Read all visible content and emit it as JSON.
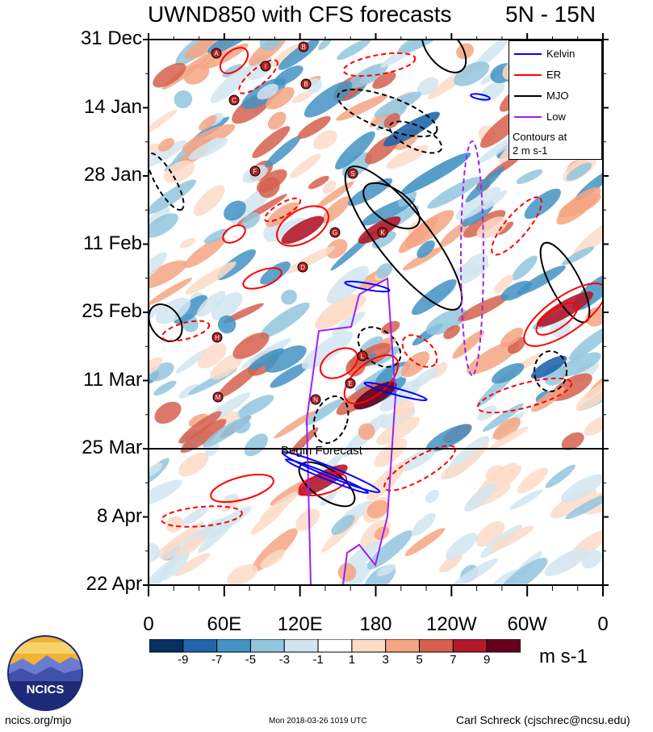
{
  "title": {
    "left": "UWND850 with CFS forecasts",
    "right": "5N - 15N"
  },
  "chart_data": {
    "type": "heatmap",
    "title": "UWND850 with CFS forecasts",
    "latitude_band": "5N - 15N",
    "y_axis": {
      "ticks": [
        "31 Dec",
        "14 Jan",
        "28 Jan",
        "11 Feb",
        "25 Feb",
        "11 Mar",
        "25 Mar",
        "8 Apr",
        "22 Apr"
      ],
      "direction": "time increasing downward"
    },
    "x_axis": {
      "ticks": [
        "0",
        "60E",
        "120E",
        "180",
        "120W",
        "60W",
        "0"
      ],
      "range_deg": [
        0,
        360
      ]
    },
    "forecast_marker": {
      "label": "Begin Forecast",
      "date": "25 Mar"
    },
    "colorbar": {
      "units": "m s-1",
      "labels": [
        "-9",
        "-7",
        "-5",
        "-3",
        "-1",
        "1",
        "3",
        "5",
        "7",
        "9"
      ],
      "colors": [
        "#053061",
        "#2166ac",
        "#4393c3",
        "#92c5de",
        "#d1e5f0",
        "#ffffff",
        "#fddbc7",
        "#f4a582",
        "#d6604d",
        "#b2182b",
        "#67001f"
      ]
    },
    "legend": {
      "position": "top-right",
      "entries": [
        {
          "name": "Kelvin",
          "color": "#0000ff"
        },
        {
          "name": "ER",
          "color": "#ff0000"
        },
        {
          "name": "MJO",
          "color": "#000000"
        },
        {
          "name": "Low",
          "color": "#a020f0"
        }
      ],
      "note": "Contours at\n2 m s-1"
    },
    "storm_letters": [
      "A",
      "B",
      "I",
      "B",
      "C",
      "F",
      "S",
      "G",
      "K",
      "D",
      "H",
      "L",
      "E",
      "M",
      "N"
    ]
  },
  "logo": {
    "text": "NCICS"
  },
  "footer": {
    "left": "ncics.org/mjo",
    "center": "Mon 2018-03-26 1019 UTC",
    "right": "Carl Schreck (cjschrec@ncsu.edu)"
  }
}
